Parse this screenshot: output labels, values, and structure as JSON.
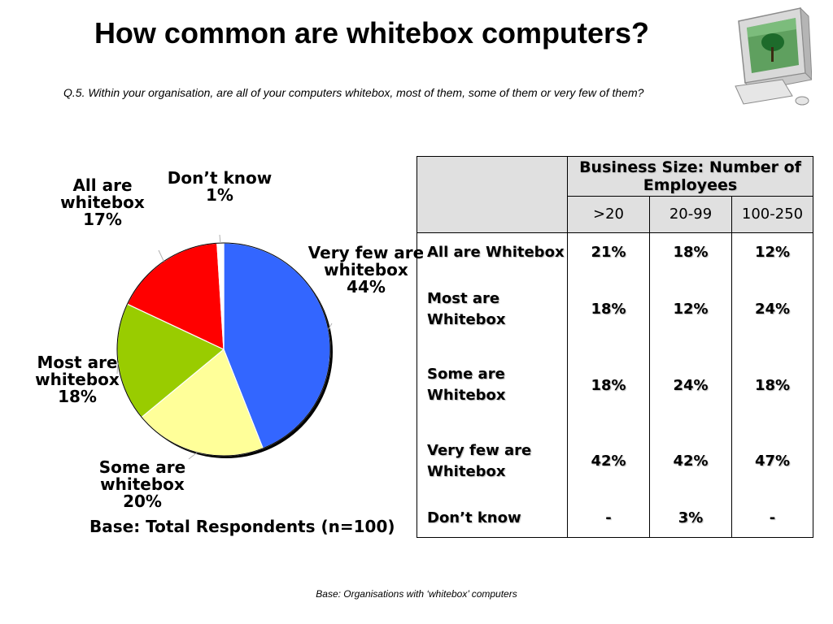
{
  "title": "How common are whitebox computers?",
  "question": "Q.5. Within your organisation, are all of your computers whitebox, most of them, some of them or very few of them?",
  "base_total": "Base: Total Respondents (n=100)",
  "footer": "Base:  Organisations with ‘whitebox’ computers",
  "icons": {
    "computer": "computer-monitor-icon"
  },
  "chart_data": {
    "type": "pie",
    "slices": [
      {
        "label": "Very few are whitebox",
        "line1": "Very few are",
        "line2": "whitebox",
        "value": 44,
        "pct": "44%",
        "color": "#3366ff"
      },
      {
        "label": "Some are whitebox",
        "line1": "Some are",
        "line2": "whitebox",
        "value": 20,
        "pct": "20%",
        "color": "#ffff99"
      },
      {
        "label": "Most are whitebox",
        "line1": "Most are",
        "line2": "whitebox",
        "value": 18,
        "pct": "18%",
        "color": "#99cc00"
      },
      {
        "label": "All are whitebox",
        "line1": "All are",
        "line2": "whitebox",
        "value": 17,
        "pct": "17%",
        "color": "#ff0000"
      },
      {
        "label": "Don’t know",
        "line1": "Don’t know",
        "line2": "",
        "value": 1,
        "pct": "1%",
        "color": "#ffffff"
      }
    ]
  },
  "table": {
    "group_header": "Business Size: Number of Employees",
    "columns": [
      ">20",
      "20-99",
      "100-250"
    ],
    "rows": [
      {
        "label": "All are Whitebox",
        "values": [
          "21%",
          "18%",
          "12%"
        ]
      },
      {
        "label": "Most are Whitebox",
        "values": [
          "18%",
          "12%",
          "24%"
        ]
      },
      {
        "label": "Some are Whitebox",
        "values": [
          "18%",
          "24%",
          "18%"
        ]
      },
      {
        "label": "Very few are Whitebox",
        "values": [
          "42%",
          "42%",
          "47%"
        ]
      },
      {
        "label": "Don’t know",
        "values": [
          "-",
          "3%",
          "-"
        ]
      }
    ]
  }
}
